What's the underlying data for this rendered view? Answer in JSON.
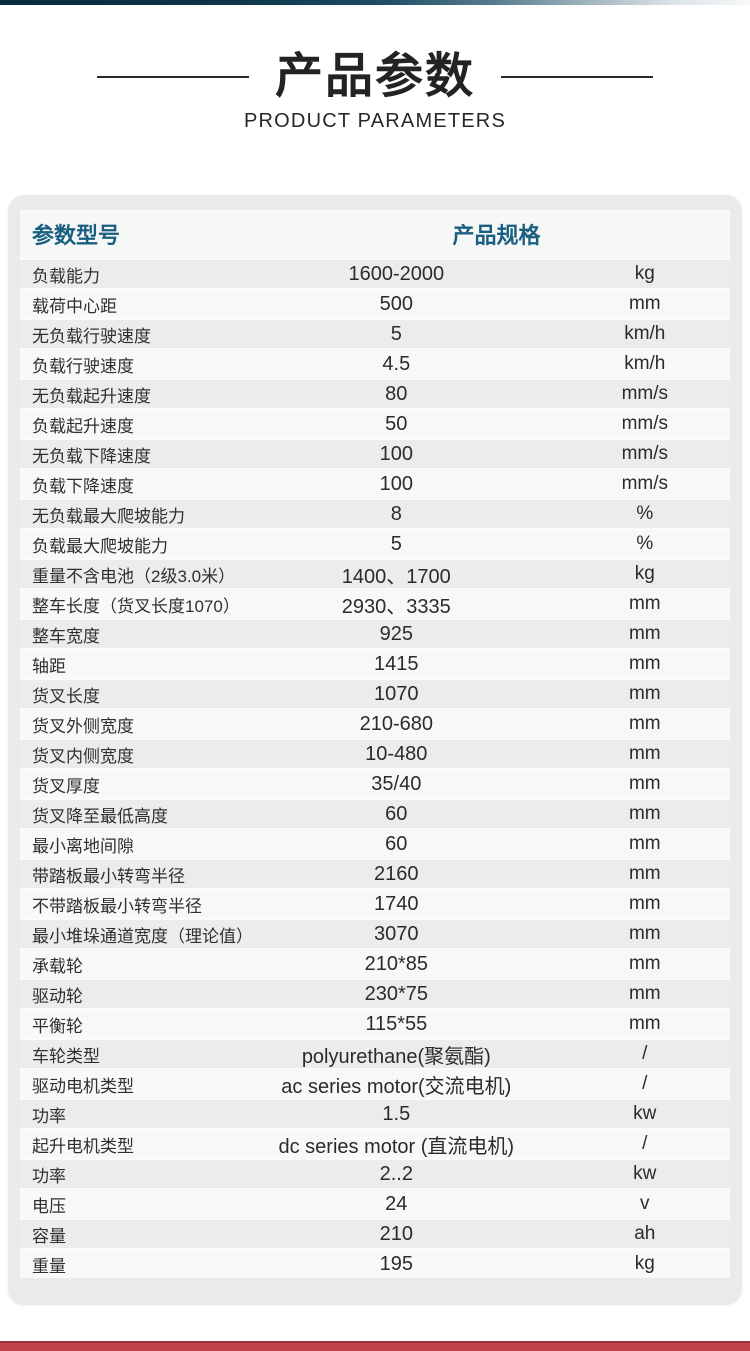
{
  "title": {
    "cn": "产品参数",
    "en": "PRODUCT PARAMETERS"
  },
  "table": {
    "header": {
      "param_col": "参数型号",
      "spec_col": "产品规格"
    },
    "rows": [
      {
        "label": "负载能力",
        "value": "1600-2000",
        "unit": "kg"
      },
      {
        "label": "载荷中心距",
        "value": "500",
        "unit": "mm"
      },
      {
        "label": "无负载行驶速度",
        "value": "5",
        "unit": "km/h"
      },
      {
        "label": "负载行驶速度",
        "value": "4.5",
        "unit": "km/h"
      },
      {
        "label": "无负载起升速度",
        "value": "80",
        "unit": "mm/s"
      },
      {
        "label": "负载起升速度",
        "value": "50",
        "unit": "mm/s"
      },
      {
        "label": "无负载下降速度",
        "value": "100",
        "unit": "mm/s"
      },
      {
        "label": "负载下降速度",
        "value": "100",
        "unit": "mm/s"
      },
      {
        "label": "无负载最大爬坡能力",
        "value": "8",
        "unit": "%"
      },
      {
        "label": "负载最大爬坡能力",
        "value": "5",
        "unit": "%"
      },
      {
        "label": "重量不含电池（2级3.0米）",
        "value": "1400、1700",
        "unit": "kg"
      },
      {
        "label": "整车长度（货叉长度1070）",
        "value": "2930、3335",
        "unit": "mm"
      },
      {
        "label": "整车宽度",
        "value": "925",
        "unit": "mm"
      },
      {
        "label": "轴距",
        "value": "1415",
        "unit": "mm"
      },
      {
        "label": "货叉长度",
        "value": "1070",
        "unit": "mm"
      },
      {
        "label": "货叉外侧宽度",
        "value": "210-680",
        "unit": "mm"
      },
      {
        "label": "货叉内侧宽度",
        "value": "10-480",
        "unit": "mm"
      },
      {
        "label": "货叉厚度",
        "value": "35/40",
        "unit": "mm"
      },
      {
        "label": "货叉降至最低高度",
        "value": "60",
        "unit": "mm"
      },
      {
        "label": "最小离地间隙",
        "value": "60",
        "unit": "mm"
      },
      {
        "label": "带踏板最小转弯半径",
        "value": "2160",
        "unit": "mm"
      },
      {
        "label": "不带踏板最小转弯半径",
        "value": "1740",
        "unit": "mm"
      },
      {
        "label": "最小堆垛通道宽度（理论值）",
        "value": "3070",
        "unit": "mm"
      },
      {
        "label": "承载轮",
        "value": "210*85",
        "unit": "mm"
      },
      {
        "label": "驱动轮",
        "value": "230*75",
        "unit": "mm"
      },
      {
        "label": "平衡轮",
        "value": "115*55",
        "unit": "mm"
      },
      {
        "label": "车轮类型",
        "value": "polyurethane(聚氨酯)",
        "unit": "/"
      },
      {
        "label": "驱动电机类型",
        "value": "ac series motor(交流电机)",
        "unit": "/"
      },
      {
        "label": "功率",
        "value": "1.5",
        "unit": "kw"
      },
      {
        "label": "起升电机类型",
        "value": "dc series motor (直流电机)",
        "unit": "/"
      },
      {
        "label": "功率",
        "value": "2..2",
        "unit": "kw"
      },
      {
        "label": "电压",
        "value": "24",
        "unit": "v"
      },
      {
        "label": "容量",
        "value": "210",
        "unit": "ah"
      },
      {
        "label": "重量",
        "value": "195",
        "unit": "kg"
      }
    ]
  },
  "colors": {
    "header_text": "#1a5f80",
    "card_background": "#e9eaea",
    "row_dark": "#ececec",
    "row_light": "#f7f8f8",
    "top_bar_navy": "#0a2a3d",
    "bottom_bar_red": "#c2424a"
  }
}
